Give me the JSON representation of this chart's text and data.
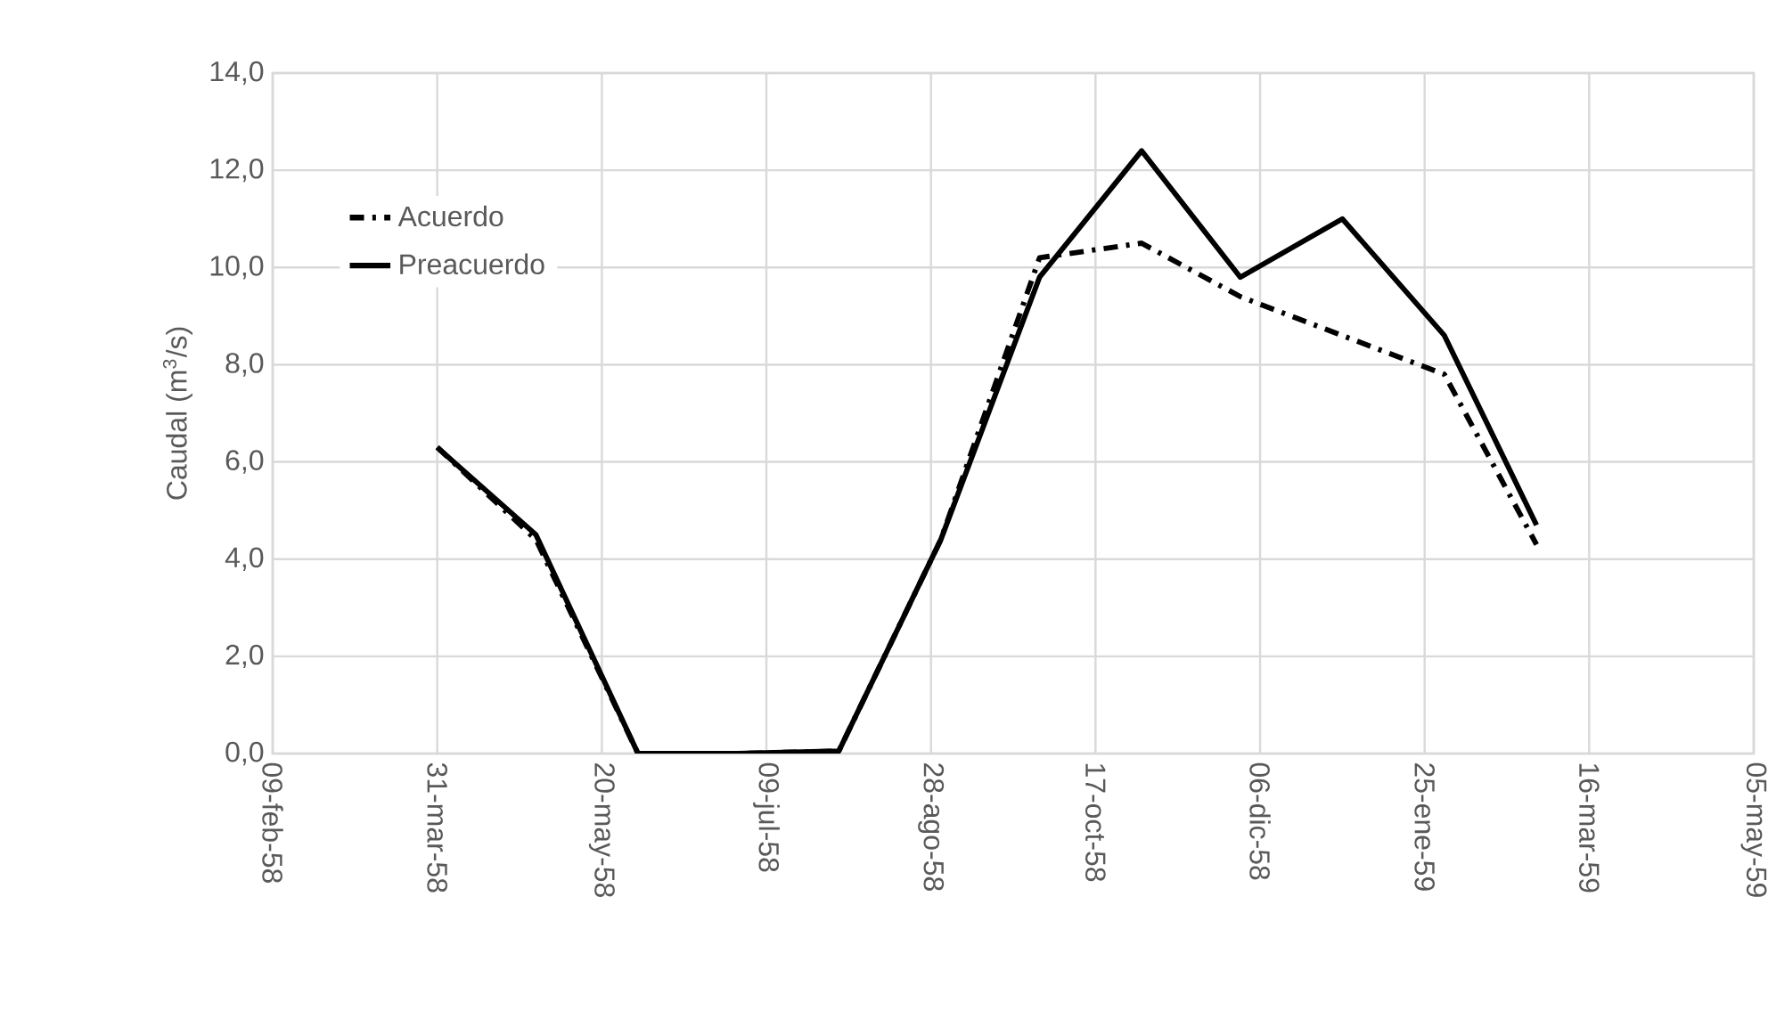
{
  "chart_data": {
    "type": "line",
    "ylabel": "Caudal (m$^{3}$/s)",
    "x": [
      "1958-03-31",
      "1958-04-30",
      "1958-05-31",
      "1958-06-30",
      "1958-07-31",
      "1958-08-31",
      "1958-09-30",
      "1958-10-31",
      "1958-11-30",
      "1958-12-31",
      "1959-01-31",
      "1959-02-28"
    ],
    "series": [
      {
        "name": "Acuerdo",
        "color": "#000000",
        "line_style": "dashdot",
        "values": [
          6.3,
          4.4,
          0,
          0,
          0.05,
          4.4,
          10.2,
          10.5,
          9.4,
          8.6,
          7.8,
          4.3
        ]
      },
      {
        "name": "Preacuerdo",
        "color": "#000000",
        "line_style": "solid",
        "values": [
          6.3,
          4.5,
          0,
          0,
          0.05,
          4.4,
          9.8,
          12.4,
          9.8,
          11.0,
          8.6,
          4.7
        ]
      }
    ],
    "xlim": [
      "1958-02-09",
      "1959-05-05"
    ],
    "xticks": [
      {
        "value": "1958-02-09",
        "label": "09-feb-58"
      },
      {
        "value": "1958-03-31",
        "label": "31-mar-58"
      },
      {
        "value": "1958-05-20",
        "label": "20-may-58"
      },
      {
        "value": "1958-07-09",
        "label": "09-jul-58"
      },
      {
        "value": "1958-08-28",
        "label": "28-ago-58"
      },
      {
        "value": "1958-10-17",
        "label": "17-oct-58"
      },
      {
        "value": "1958-12-06",
        "label": "06-dic-58"
      },
      {
        "value": "1959-01-25",
        "label": "25-ene-59"
      },
      {
        "value": "1959-03-16",
        "label": "16-mar-59"
      },
      {
        "value": "1959-05-05",
        "label": "05-may-59"
      }
    ],
    "ylim": [
      0,
      14
    ],
    "yticks": [
      {
        "value": 0,
        "label": "0,0"
      },
      {
        "value": 2,
        "label": "2,0"
      },
      {
        "value": 4,
        "label": "4,0"
      },
      {
        "value": 6,
        "label": "6,0"
      },
      {
        "value": 8,
        "label": "8,0"
      },
      {
        "value": 10,
        "label": "10,0"
      },
      {
        "value": 12,
        "label": "12,0"
      },
      {
        "value": 14,
        "label": "14,0"
      }
    ],
    "grid": true,
    "legend": "top left"
  }
}
